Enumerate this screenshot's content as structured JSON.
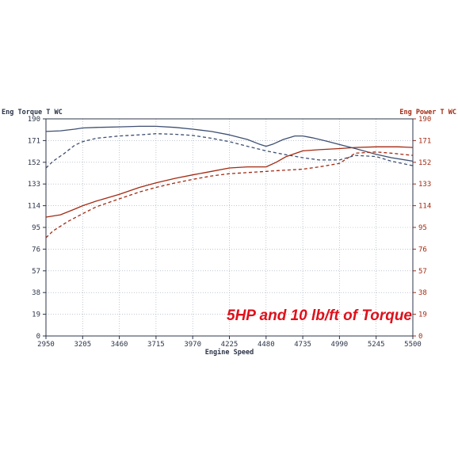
{
  "chart_data": {
    "type": "line",
    "left_axis_title": "Eng Torque T WC",
    "right_axis_title": "Eng Power T WC",
    "xlabel": "Engine Speed",
    "annotation": "5HP and 10 lb/ft of Torque",
    "xlim": [
      2950,
      5500
    ],
    "ylim": [
      0,
      190
    ],
    "x_ticks": [
      "2950",
      "3205",
      "3460",
      "3715",
      "3970",
      "4225",
      "4480",
      "4735",
      "4990",
      "5245",
      "5500"
    ],
    "y_ticks_left": [
      "0",
      "19",
      "38",
      "57",
      "76",
      "95",
      "114",
      "133",
      "152",
      "171",
      "190"
    ],
    "y_ticks_right": [
      "0",
      "19",
      "38",
      "57",
      "76",
      "95",
      "114",
      "133",
      "152",
      "171",
      "190"
    ],
    "grid": true,
    "colors": {
      "torque": "#3e4f72",
      "power": "#a32a12",
      "annotation": "#e0101a",
      "right_axis": "#a32a12",
      "grid": "#9aa6b8"
    },
    "series": [
      {
        "axis": "left",
        "style": "solid",
        "color": "#3e4f72",
        "x": [
          2950,
          3050,
          3150,
          3205,
          3300,
          3460,
          3600,
          3715,
          3850,
          3970,
          4100,
          4225,
          4350,
          4430,
          4480,
          4530,
          4600,
          4680,
          4735,
          4800,
          4900,
          4990,
          5100,
          5245,
          5350,
          5500
        ],
        "y": [
          179,
          179.5,
          181,
          182,
          182.5,
          183,
          183.5,
          183.5,
          182.5,
          181,
          179,
          176,
          172,
          168,
          166,
          168,
          172,
          175,
          175,
          173.5,
          170.5,
          167.5,
          164,
          159,
          156,
          153
        ]
      },
      {
        "axis": "left",
        "style": "dashed",
        "color": "#3e4f72",
        "x": [
          2950,
          3000,
          3080,
          3150,
          3205,
          3300,
          3460,
          3600,
          3715,
          3850,
          3970,
          4100,
          4225,
          4350,
          4480,
          4600,
          4735,
          4850,
          4990,
          5100,
          5245,
          5350,
          5500
        ],
        "y": [
          147,
          153,
          160,
          167,
          170,
          173,
          175,
          176,
          177,
          176.5,
          175.5,
          173,
          170,
          166,
          162,
          159,
          156,
          154,
          154,
          158,
          157,
          153,
          149
        ]
      },
      {
        "axis": "right",
        "style": "solid",
        "color": "#a32a12",
        "x": [
          2950,
          3050,
          3150,
          3205,
          3300,
          3460,
          3600,
          3715,
          3850,
          3970,
          4100,
          4225,
          4350,
          4480,
          4550,
          4620,
          4735,
          4850,
          4990,
          5100,
          5245,
          5400,
          5500
        ],
        "y": [
          104,
          106,
          111,
          114,
          118,
          124,
          130,
          134,
          138,
          141,
          144,
          147,
          148,
          148,
          152,
          157,
          162,
          163,
          164,
          165,
          165.5,
          165.5,
          165
        ]
      },
      {
        "axis": "right",
        "style": "dashed",
        "color": "#a32a12",
        "x": [
          2950,
          3000,
          3100,
          3205,
          3300,
          3460,
          3600,
          3715,
          3850,
          3970,
          4100,
          4225,
          4350,
          4480,
          4600,
          4735,
          4850,
          4990,
          5100,
          5245,
          5350,
          5500
        ],
        "y": [
          86,
          92,
          100,
          107,
          113,
          120,
          126,
          130,
          134,
          137,
          140,
          142,
          143,
          144,
          145,
          146,
          148,
          151,
          160,
          161,
          160,
          158
        ]
      }
    ]
  }
}
